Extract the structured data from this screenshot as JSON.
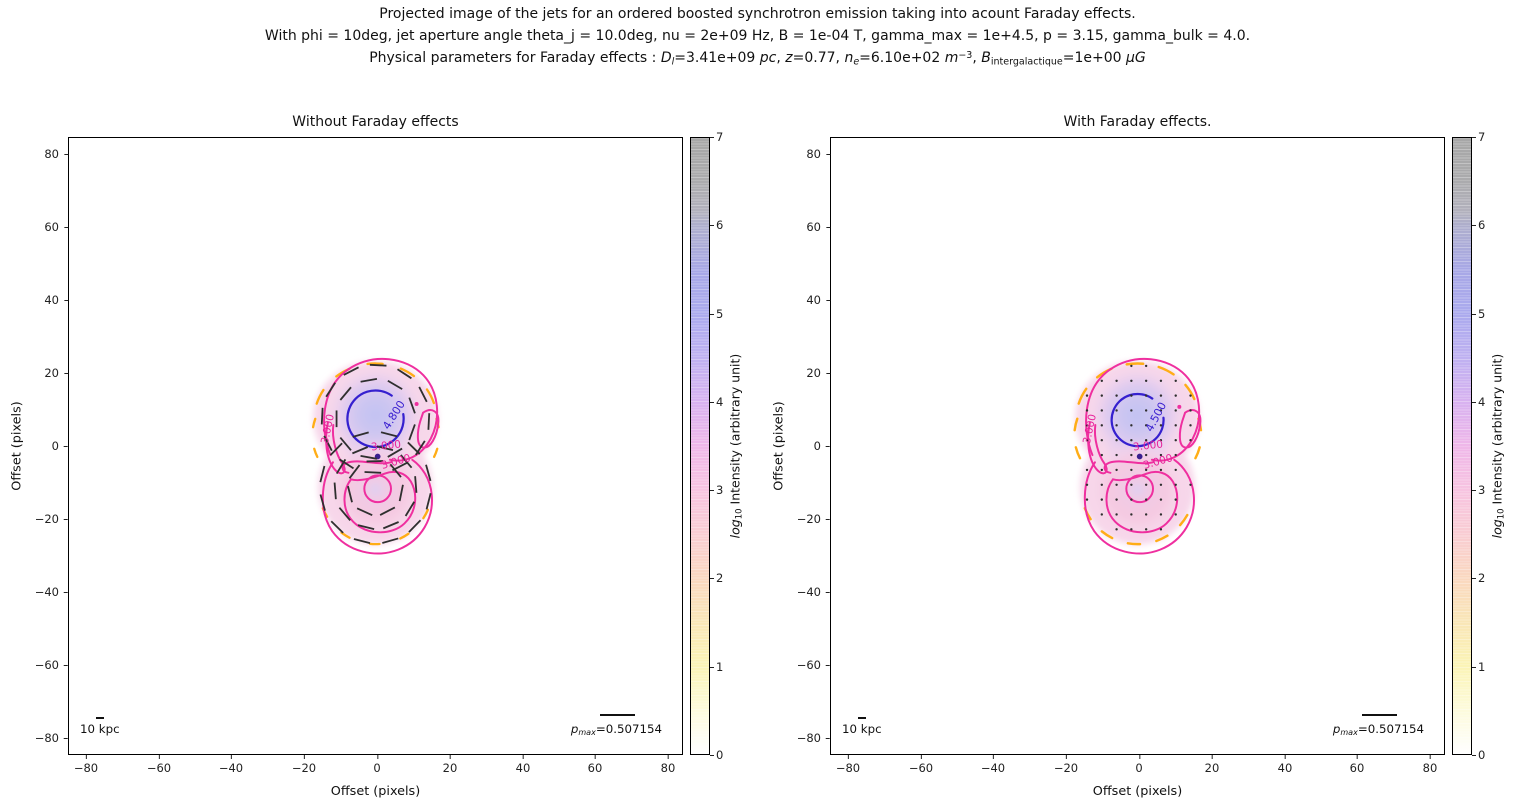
{
  "header": {
    "line1": "Projected image of the jets for an ordered boosted synchrotron emission taking into acount Faraday effects.",
    "line2": "With phi = 10deg, jet aperture angle theta_j = 10.0deg, nu = 2e+09 Hz, B = 1e-04 T, gamma_max = 1e+4.5, p = 3.15, gamma_bulk = 4.0.",
    "line3_segments": [
      {
        "t": "Physical parameters for Faraday effects : "
      },
      {
        "t": "D",
        "c": "it"
      },
      {
        "t": "l",
        "c": "sub it"
      },
      {
        "t": "=3.41e+09 "
      },
      {
        "t": "pc",
        "c": "it"
      },
      {
        "t": ", "
      },
      {
        "t": "z",
        "c": "it"
      },
      {
        "t": "=0.77, "
      },
      {
        "t": "n",
        "c": "it"
      },
      {
        "t": "e",
        "c": "sub it"
      },
      {
        "t": "=6.10e+02 "
      },
      {
        "t": "m",
        "c": "it"
      },
      {
        "t": "−3",
        "c": "sup"
      },
      {
        "t": ", "
      },
      {
        "t": "B",
        "c": "it"
      },
      {
        "t": "intergalactique",
        "c": "sub"
      },
      {
        "t": "=1e+00 "
      },
      {
        "t": "μG",
        "c": "it"
      }
    ]
  },
  "colors": {
    "contour_pink": "#ef2f9f",
    "contour_blue": "#3520cf",
    "contour_orange": "#ffad17",
    "polarization_black": "#2f2f2f",
    "fill_pink": "#f7d7ea",
    "fill_core_blue": "#c2c2f3"
  },
  "panels": [
    {
      "title": "Without Faraday effects",
      "xlabel": "Offset (pixels)",
      "ylabel": "Offset (pixels)",
      "x_ticks": [
        "−80",
        "−60",
        "−40",
        "−20",
        "0",
        "20",
        "40",
        "60",
        "80"
      ],
      "y_ticks": [
        "80",
        "60",
        "40",
        "20",
        "0",
        "−20",
        "−40",
        "−60",
        "−80"
      ],
      "scalebar_label": "10 kpc",
      "pmax_segments": [
        {
          "t": "p",
          "c": "it"
        },
        {
          "t": "max",
          "c": "sub it"
        },
        {
          "t": "=0.507154"
        }
      ],
      "contour_labels": {
        "outer_left": "3.000",
        "core": "4.800",
        "waist": "3.000",
        "lower": "3.000"
      }
    },
    {
      "title": "With Faraday effects.",
      "xlabel": "Offset (pixels)",
      "ylabel": "Offset (pixels)",
      "x_ticks": [
        "−80",
        "−60",
        "−40",
        "−20",
        "0",
        "20",
        "40",
        "60",
        "80"
      ],
      "y_ticks": [
        "80",
        "60",
        "40",
        "20",
        "0",
        "−20",
        "−40",
        "−60",
        "−80"
      ],
      "scalebar_label": "10 kpc",
      "pmax_segments": [
        {
          "t": "p",
          "c": "it"
        },
        {
          "t": "max",
          "c": "sub it"
        },
        {
          "t": "=0.507154"
        }
      ],
      "contour_labels": {
        "outer_left": "3.000",
        "core": "4.500",
        "waist": "3.000",
        "lower": "3.000"
      }
    }
  ],
  "colorbar": {
    "ticks": [
      "0",
      "1",
      "2",
      "3",
      "4",
      "5",
      "6",
      "7"
    ],
    "label_segments": [
      {
        "t": "log",
        "c": "it"
      },
      {
        "t": "10",
        "c": "sub"
      },
      {
        "t": " Intensity (arbitrary unit)"
      }
    ]
  },
  "chart_data": [
    {
      "type": "heatmap",
      "title": "Without Faraday effects",
      "xlabel": "Offset (pixels)",
      "ylabel": "Offset (pixels)",
      "xlim": [
        -85,
        85
      ],
      "ylim": [
        -85,
        85
      ],
      "x_ticks": [
        -80,
        -60,
        -40,
        -20,
        0,
        20,
        40,
        60,
        80
      ],
      "y_ticks": [
        -80,
        -60,
        -40,
        -20,
        0,
        20,
        40,
        60,
        80
      ],
      "colorbar": {
        "label": "log10 Intensity (arbitrary unit)",
        "min": 0,
        "max": 7,
        "ticks": [
          0,
          1,
          2,
          3,
          4,
          5,
          6,
          7
        ]
      },
      "labeled_contour_levels": [
        3.0,
        4.8
      ],
      "contour_label_texts": [
        "3.000",
        "4.800"
      ],
      "structure": {
        "upper_lobe": {
          "center_xy": [
            0,
            8
          ],
          "radius_x": 17,
          "radius_y": 15,
          "peak_log10_intensity": 4.8
        },
        "lower_lobe": {
          "center_xy": [
            0,
            -11
          ],
          "radius": 15,
          "inner_ring_level": 3.0
        },
        "emission_extent_x": [
          -18,
          17
        ],
        "emission_extent_y": [
          -27,
          23
        ]
      },
      "polarization_overlay": "short dashed E-vector segments arranged tangentially around both lobes",
      "annotations": {
        "scalebar_label": "10 kpc",
        "p_max": 0.507154
      },
      "legend_position": "none",
      "grid": false
    },
    {
      "type": "heatmap",
      "title": "With Faraday effects.",
      "xlabel": "Offset (pixels)",
      "ylabel": "Offset (pixels)",
      "xlim": [
        -85,
        85
      ],
      "ylim": [
        -85,
        85
      ],
      "x_ticks": [
        -80,
        -60,
        -40,
        -20,
        0,
        20,
        40,
        60,
        80
      ],
      "y_ticks": [
        -80,
        -60,
        -40,
        -20,
        0,
        20,
        40,
        60,
        80
      ],
      "colorbar": {
        "label": "log10 Intensity (arbitrary unit)",
        "min": 0,
        "max": 7,
        "ticks": [
          0,
          1,
          2,
          3,
          4,
          5,
          6,
          7
        ]
      },
      "labeled_contour_levels": [
        3.0,
        4.5
      ],
      "contour_label_texts": [
        "3.000",
        "4.500"
      ],
      "structure": {
        "upper_lobe": {
          "center_xy": [
            0,
            8
          ],
          "radius_x": 17,
          "radius_y": 15,
          "peak_log10_intensity": 4.5
        },
        "lower_lobe": {
          "center_xy": [
            0,
            -11
          ],
          "radius": 15,
          "inner_ring_level": 3.0
        },
        "emission_extent_x": [
          -18,
          17
        ],
        "emission_extent_y": [
          -27,
          23
        ]
      },
      "polarization_overlay": "grid of dots (depolarized vectors due to Faraday rotation)",
      "annotations": {
        "scalebar_label": "10 kpc",
        "p_max": 0.507154
      },
      "legend_position": "none",
      "grid": false
    }
  ]
}
